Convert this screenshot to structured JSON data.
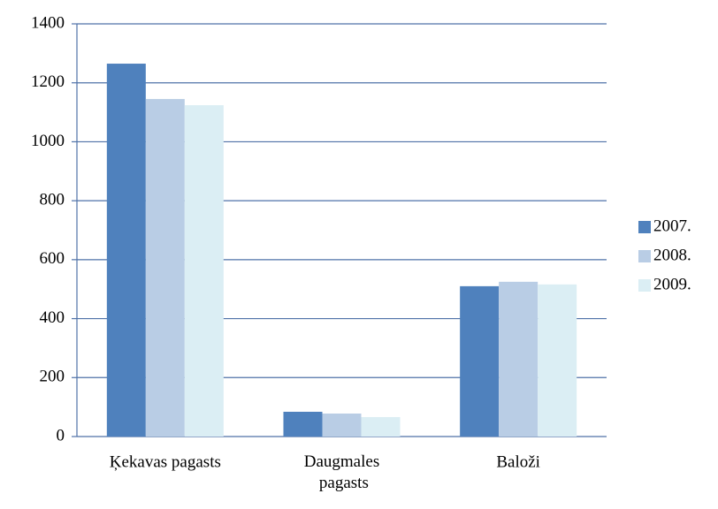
{
  "chart_data": {
    "type": "bar",
    "categories": [
      "Ķekavas pagasts",
      "Daugmales pagasts",
      "Baloži"
    ],
    "series": [
      {
        "name": "2007.",
        "color": "#4f81bd",
        "values": [
          1265,
          84,
          510
        ]
      },
      {
        "name": "2008.",
        "color": "#b9cde5",
        "values": [
          1145,
          78,
          525
        ]
      },
      {
        "name": "2009.",
        "color": "#dbeef4",
        "values": [
          1124,
          66,
          516
        ]
      }
    ],
    "ylim": [
      0,
      1400
    ],
    "yticks": [
      0,
      200,
      400,
      600,
      800,
      1000,
      1200,
      1400
    ],
    "grid": true,
    "legend": "right"
  }
}
